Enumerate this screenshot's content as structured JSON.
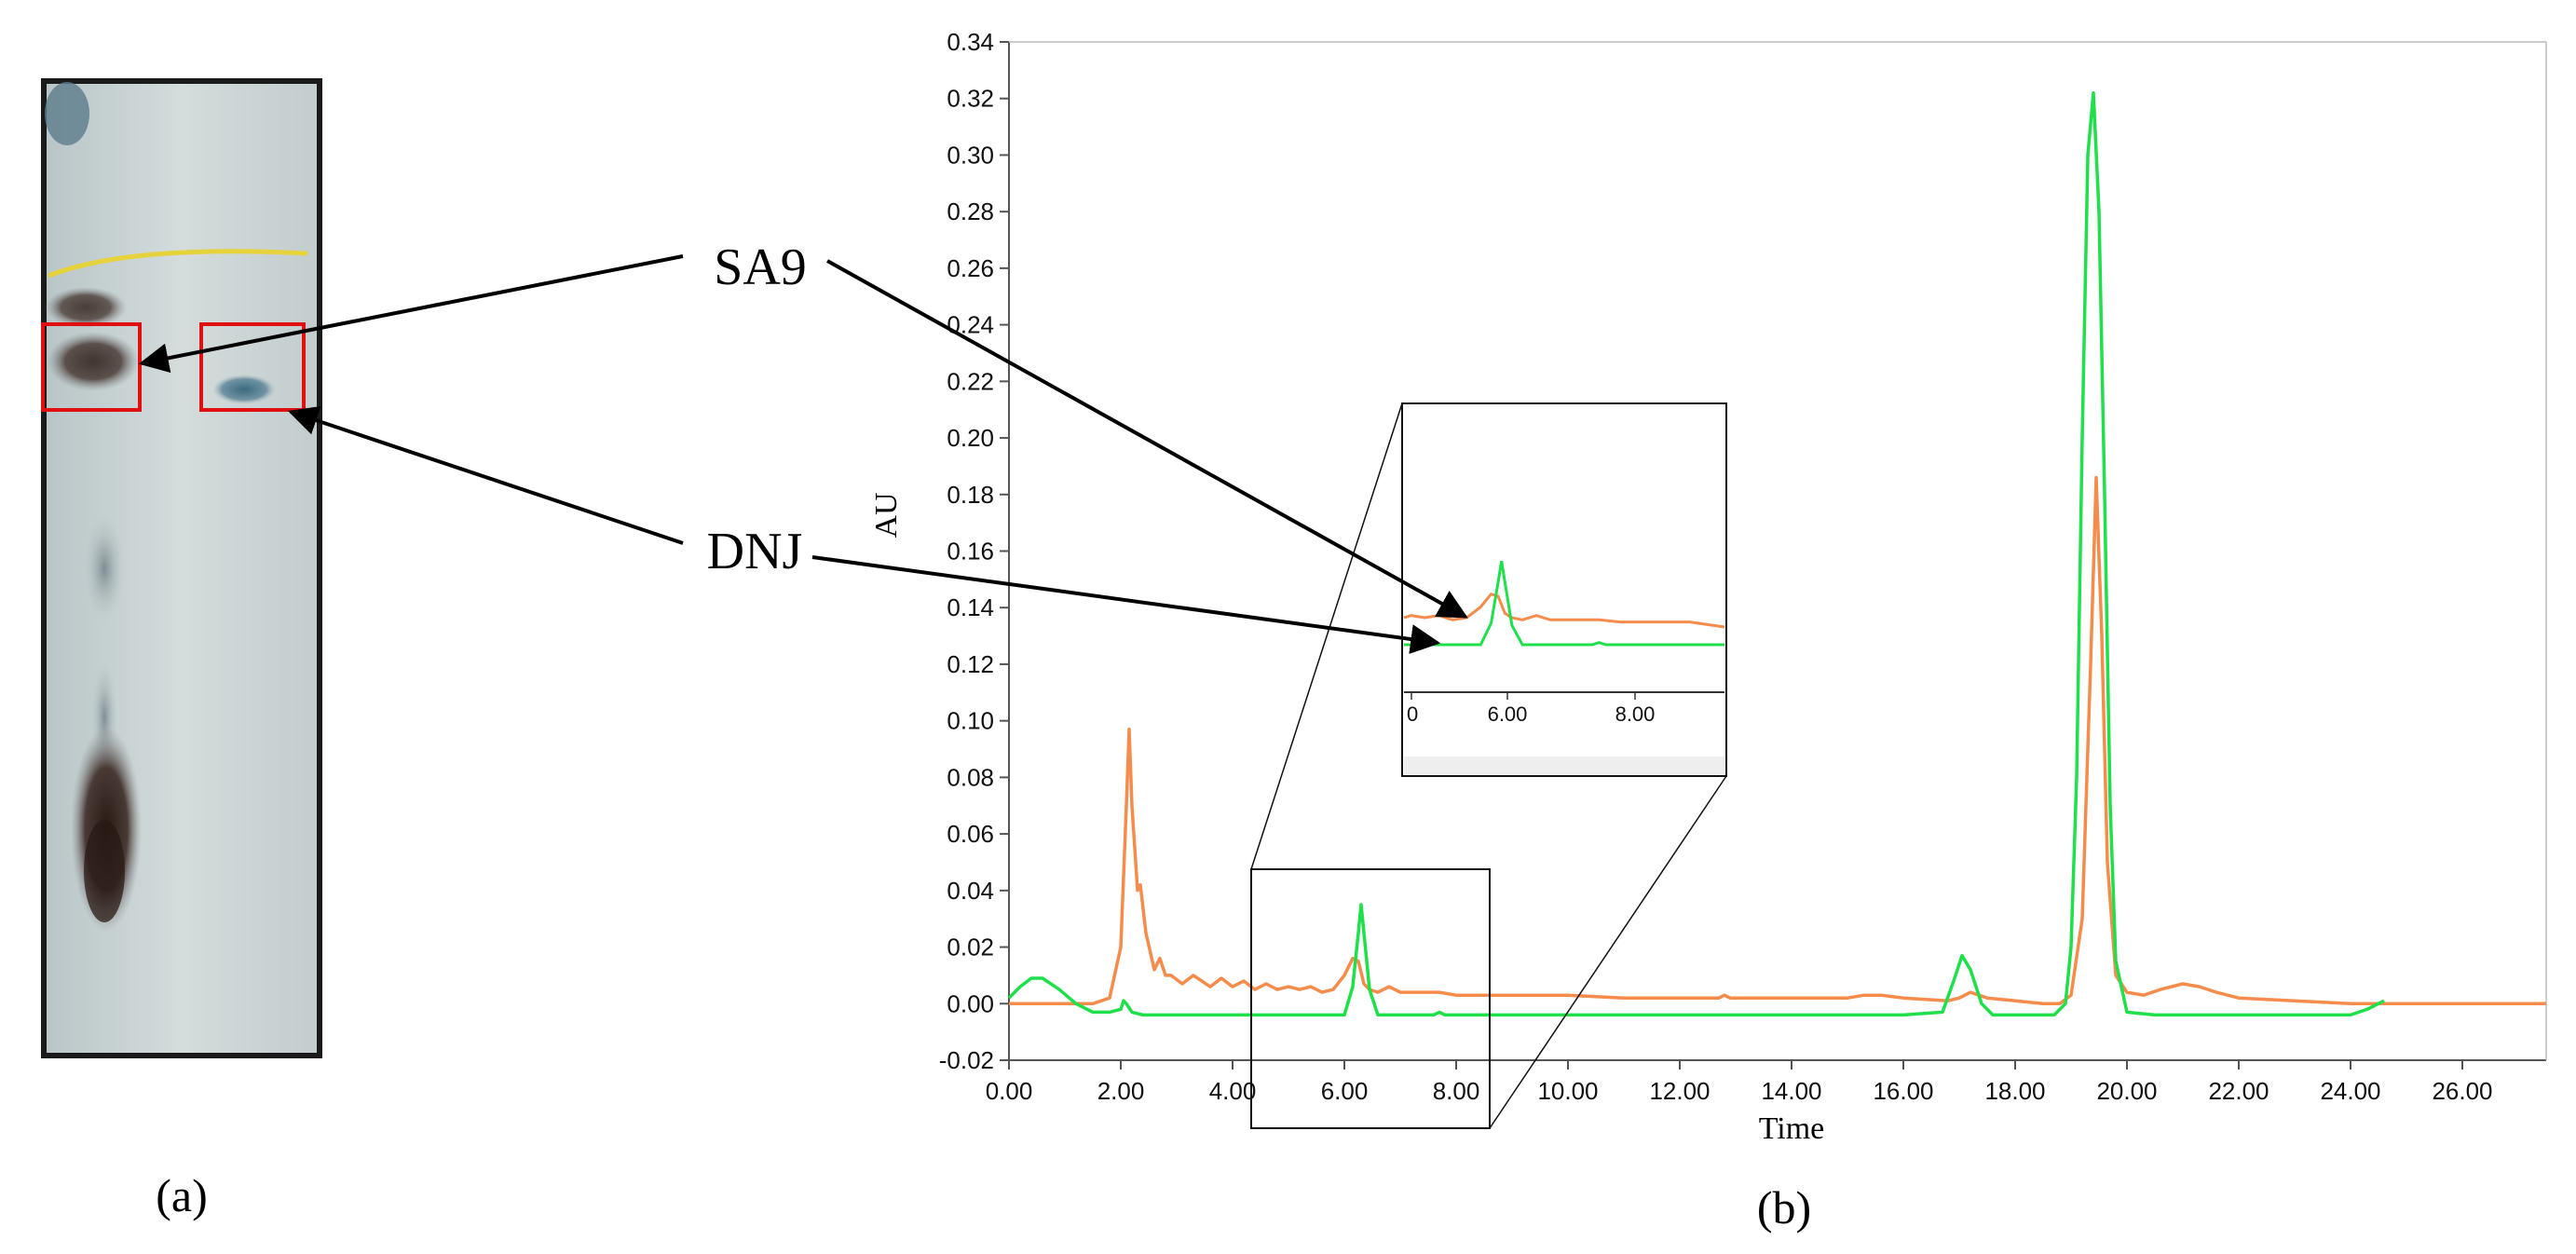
{
  "figure": {
    "panel_a_label": "(a)",
    "panel_b_label": "(b)",
    "callouts": {
      "sa9": "SA9",
      "dnj": "DNJ"
    },
    "inset_ticks": [
      "0",
      "6.00",
      "8.00"
    ]
  },
  "colors": {
    "series_orange": "#f58c4c",
    "series_green": "#1fe04a",
    "highlight_box": "#e01010",
    "plate_background": "#c9d3d3",
    "solvent_front": "#e6d23a"
  },
  "chart_data": {
    "type": "line",
    "title": "",
    "xlabel": "Time",
    "ylabel": "AU",
    "xlim": [
      0,
      27.5
    ],
    "ylim": [
      -0.02,
      0.34
    ],
    "x_ticks": [
      "0.00",
      "2.00",
      "4.00",
      "6.00",
      "8.00",
      "10.00",
      "12.00",
      "14.00",
      "16.00",
      "18.00",
      "20.00",
      "22.00",
      "24.00",
      "26.00"
    ],
    "y_ticks": [
      "-0.02",
      "0.00",
      "0.02",
      "0.04",
      "0.06",
      "0.08",
      "0.10",
      "0.12",
      "0.14",
      "0.16",
      "0.18",
      "0.20",
      "0.22",
      "0.24",
      "0.26",
      "0.28",
      "0.30",
      "0.32",
      "0.34"
    ],
    "grid": false,
    "series": [
      {
        "color": "#f58c4c",
        "x": [
          0.0,
          1.5,
          1.8,
          2.0,
          2.1,
          2.15,
          2.2,
          2.3,
          2.35,
          2.45,
          2.6,
          2.7,
          2.8,
          2.9,
          3.1,
          3.3,
          3.6,
          3.8,
          4.0,
          4.2,
          4.4,
          4.6,
          4.8,
          5.0,
          5.2,
          5.4,
          5.6,
          5.8,
          6.0,
          6.15,
          6.25,
          6.35,
          6.45,
          6.6,
          6.8,
          7.0,
          7.3,
          7.7,
          8.0,
          9.0,
          10.0,
          11.0,
          12.0,
          12.7,
          12.8,
          12.9,
          13.2,
          14.0,
          15.0,
          15.3,
          15.6,
          16.0,
          16.8,
          17.0,
          17.2,
          17.5,
          18.0,
          18.5,
          18.8,
          19.0,
          19.2,
          19.35,
          19.45,
          19.55,
          19.65,
          19.8,
          20.0,
          20.3,
          20.6,
          21.0,
          21.3,
          21.6,
          22.0,
          23.0,
          24.0,
          25.0,
          26.0,
          27.5
        ],
        "y": [
          0.0,
          0.0,
          0.002,
          0.02,
          0.07,
          0.097,
          0.07,
          0.04,
          0.042,
          0.025,
          0.012,
          0.016,
          0.01,
          0.01,
          0.007,
          0.01,
          0.006,
          0.009,
          0.006,
          0.008,
          0.005,
          0.007,
          0.005,
          0.006,
          0.005,
          0.006,
          0.004,
          0.005,
          0.01,
          0.016,
          0.015,
          0.007,
          0.005,
          0.004,
          0.006,
          0.004,
          0.004,
          0.004,
          0.003,
          0.003,
          0.003,
          0.002,
          0.002,
          0.002,
          0.003,
          0.002,
          0.002,
          0.002,
          0.002,
          0.003,
          0.003,
          0.002,
          0.001,
          0.002,
          0.004,
          0.002,
          0.001,
          0.0,
          0.0,
          0.003,
          0.03,
          0.12,
          0.186,
          0.13,
          0.05,
          0.01,
          0.004,
          0.003,
          0.005,
          0.007,
          0.006,
          0.004,
          0.002,
          0.001,
          0.0,
          0.0,
          0.0,
          0.0
        ]
      },
      {
        "color": "#1fe04a",
        "x": [
          0.0,
          0.2,
          0.4,
          0.6,
          0.9,
          1.2,
          1.5,
          1.8,
          2.0,
          2.05,
          2.1,
          2.2,
          2.4,
          3.0,
          4.0,
          5.0,
          6.0,
          6.15,
          6.25,
          6.3,
          6.35,
          6.45,
          6.6,
          7.0,
          7.6,
          7.7,
          7.8,
          8.0,
          9.0,
          10.0,
          12.0,
          14.0,
          16.0,
          16.7,
          16.9,
          17.05,
          17.2,
          17.4,
          17.6,
          18.0,
          18.7,
          18.9,
          19.0,
          19.1,
          19.2,
          19.3,
          19.4,
          19.5,
          19.6,
          19.7,
          19.8,
          20.0,
          20.5,
          22.0,
          23.5,
          24.0,
          24.3,
          24.6
        ],
        "y": [
          0.002,
          0.006,
          0.009,
          0.009,
          0.005,
          0.0,
          -0.003,
          -0.003,
          -0.002,
          0.001,
          0.0,
          -0.003,
          -0.004,
          -0.004,
          -0.004,
          -0.004,
          -0.004,
          0.006,
          0.025,
          0.035,
          0.025,
          0.005,
          -0.004,
          -0.004,
          -0.004,
          -0.003,
          -0.004,
          -0.004,
          -0.004,
          -0.004,
          -0.004,
          -0.004,
          -0.004,
          -0.003,
          0.008,
          0.017,
          0.012,
          0.0,
          -0.004,
          -0.004,
          -0.004,
          0.0,
          0.02,
          0.08,
          0.2,
          0.3,
          0.322,
          0.28,
          0.18,
          0.07,
          0.015,
          -0.003,
          -0.004,
          -0.004,
          -0.004,
          -0.004,
          -0.002,
          0.001
        ]
      }
    ]
  }
}
